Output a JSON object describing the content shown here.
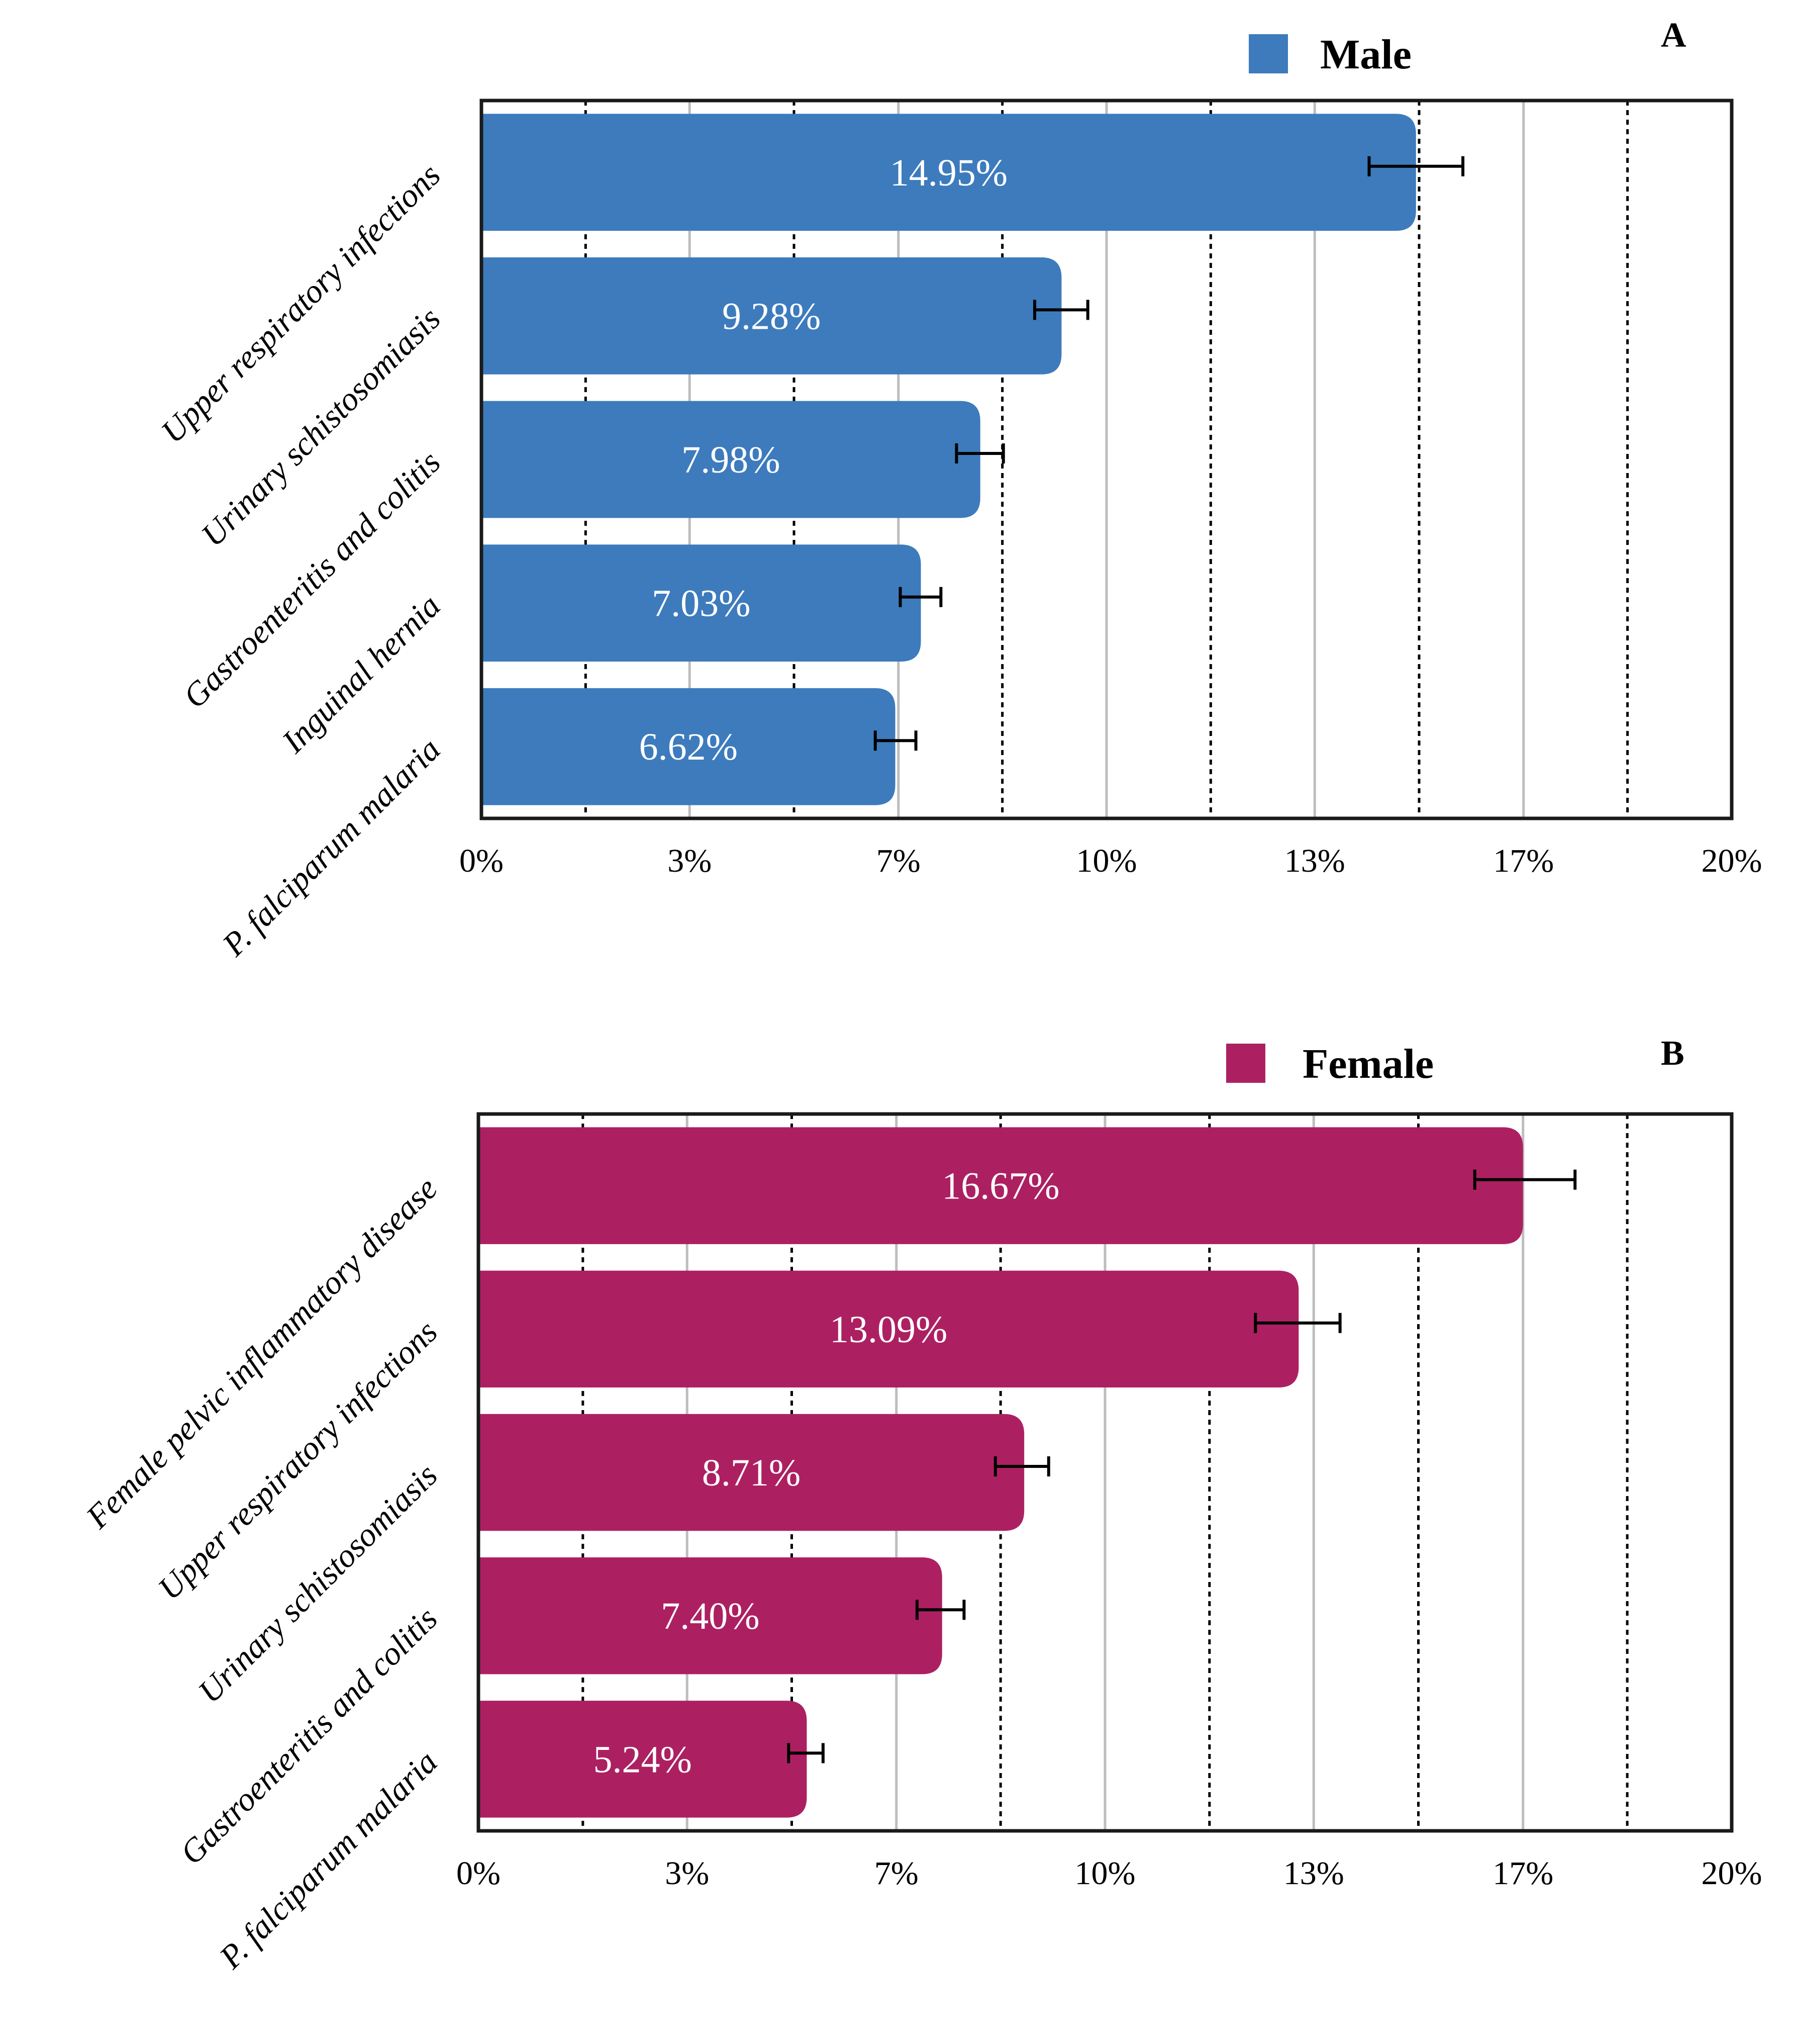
{
  "chart_data": [
    {
      "type": "bar",
      "orientation": "horizontal",
      "panel_label": "A",
      "legend": "Male",
      "color": "#3d7bbd",
      "categories": [
        "Upper respiratory infections",
        "Urinary schistosomiasis",
        "Gastroenteritis and colitis",
        "Inguinal hernia",
        "P. falciparum malaria"
      ],
      "values": [
        14.95,
        9.28,
        7.98,
        7.03,
        6.62
      ],
      "value_labels": [
        "14.95%",
        "9.28%",
        "7.98%",
        "7.03%",
        "6.62%"
      ],
      "error_low": [
        14.2,
        8.85,
        7.6,
        6.7,
        6.3
      ],
      "error_high": [
        15.7,
        9.7,
        8.35,
        7.35,
        6.95
      ],
      "xlim": [
        0,
        20
      ],
      "xticks": [
        0,
        3.33,
        6.67,
        10,
        13.33,
        16.67,
        20
      ],
      "xtick_labels": [
        "0%",
        "3%",
        "7%",
        "10%",
        "13%",
        "17%",
        "20%"
      ],
      "legend_position": "top"
    },
    {
      "type": "bar",
      "orientation": "horizontal",
      "panel_label": "B",
      "legend": "Female",
      "color": "#ac2062",
      "categories": [
        "Female pelvic inflammatory disease",
        "Upper respiratory infections",
        "Urinary schistosomiasis",
        "Gastroenteritis and colitis",
        "P. falciparum malaria"
      ],
      "values": [
        16.67,
        13.09,
        8.71,
        7.4,
        5.24
      ],
      "value_labels": [
        "16.67%",
        "13.09%",
        "8.71%",
        "7.40%",
        "5.24%"
      ],
      "error_low": [
        15.9,
        12.4,
        8.25,
        7.0,
        4.95
      ],
      "error_high": [
        17.5,
        13.75,
        9.1,
        7.75,
        5.5
      ],
      "xlim": [
        0,
        20
      ],
      "xticks": [
        0,
        3.33,
        6.67,
        10,
        13.33,
        16.67,
        20
      ],
      "xtick_labels": [
        "0%",
        "3%",
        "7%",
        "10%",
        "13%",
        "17%",
        "20%"
      ],
      "legend_position": "top"
    }
  ]
}
